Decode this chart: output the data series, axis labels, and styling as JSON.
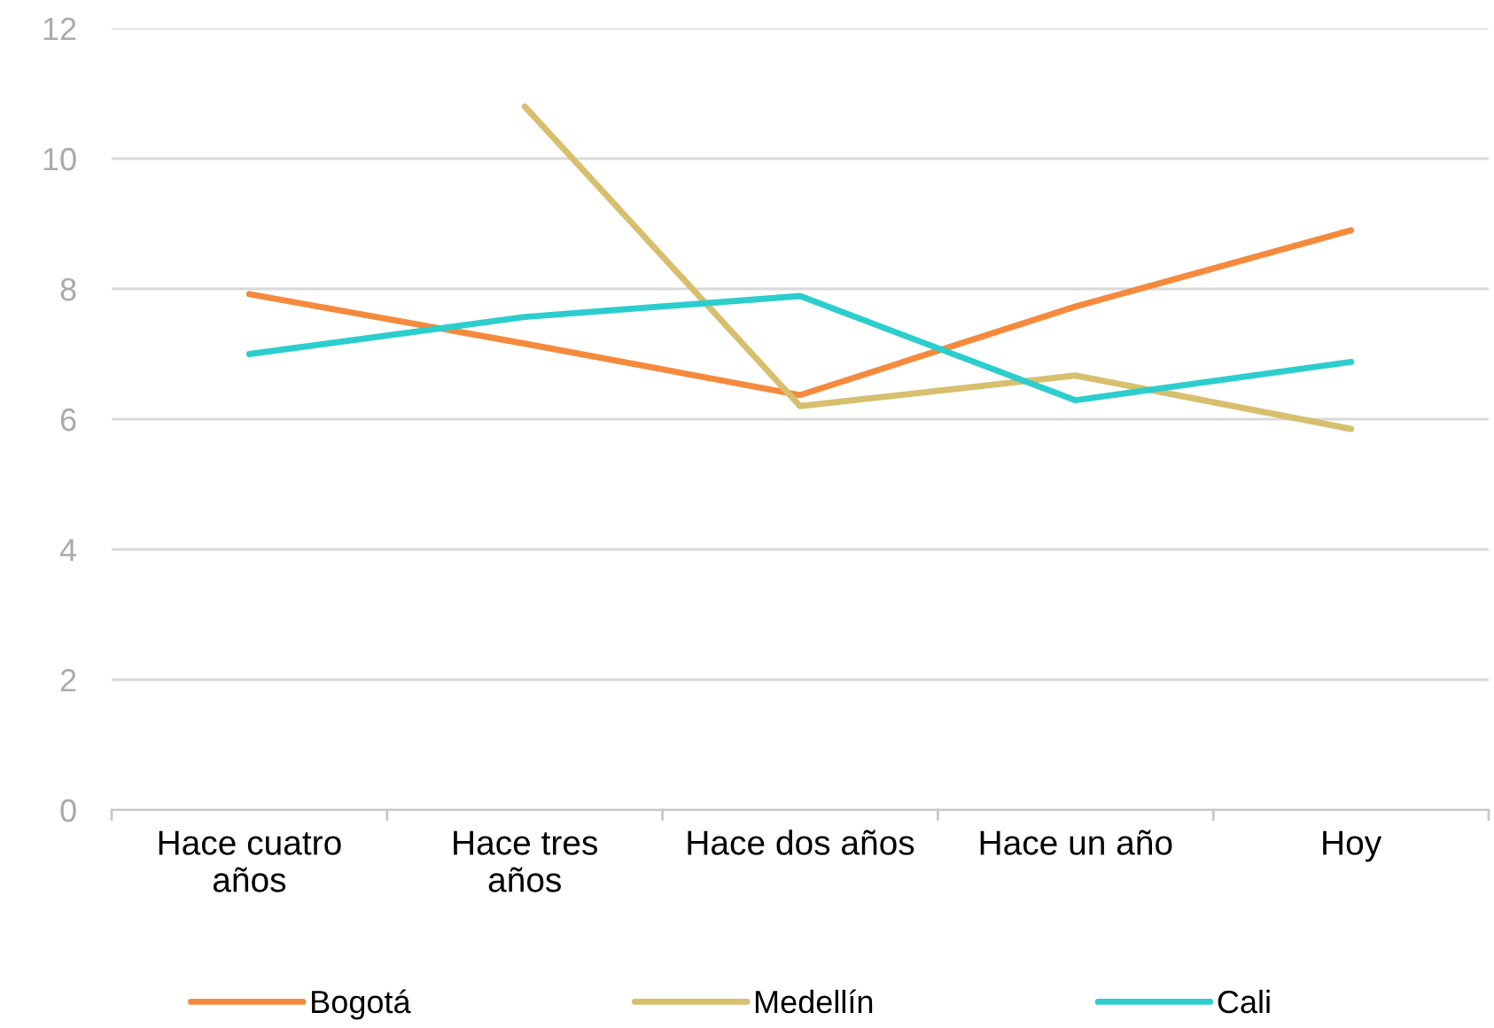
{
  "chart_data": {
    "type": "line",
    "categories": [
      "Hace cuatro\naños",
      "Hace tres\naños",
      "Hace dos años",
      "Hace un año",
      "Hoy"
    ],
    "series": [
      {
        "name": "Bogotá",
        "color": "#f58a3c",
        "values": [
          7.92,
          7.16,
          6.37,
          7.73,
          8.9
        ]
      },
      {
        "name": "Medellín",
        "color": "#d7bf6e",
        "values": [
          null,
          10.8,
          6.2,
          6.67,
          5.85
        ]
      },
      {
        "name": "Cali",
        "color": "#2ccdcd",
        "values": [
          7.0,
          7.57,
          7.89,
          6.29,
          6.88
        ]
      }
    ],
    "ylim": [
      0,
      12
    ],
    "yticks": [
      0,
      2,
      4,
      6,
      8,
      10,
      12
    ],
    "grid": "y",
    "legend": "bottom",
    "marker": "none",
    "line_style": "solid"
  }
}
